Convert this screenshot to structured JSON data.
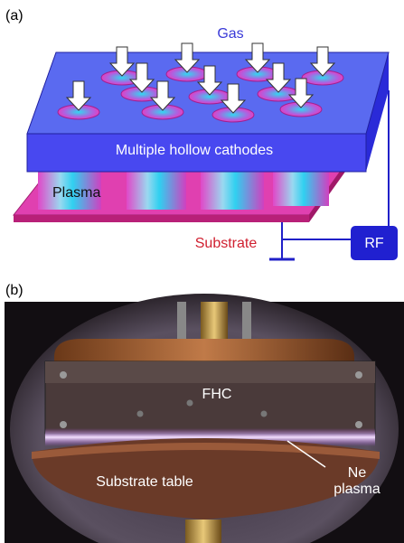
{
  "panel_a": {
    "label": "(a)",
    "gas": "Gas",
    "cathode": "Multiple hollow cathodes",
    "plasma": "Plasma",
    "substrate": "Substrate",
    "rf": "RF"
  },
  "panel_b": {
    "label": "(b)",
    "fhc": "FHC",
    "substrate_table": "Substrate table",
    "ne_plasma": [
      "Ne",
      "plasma"
    ]
  }
}
